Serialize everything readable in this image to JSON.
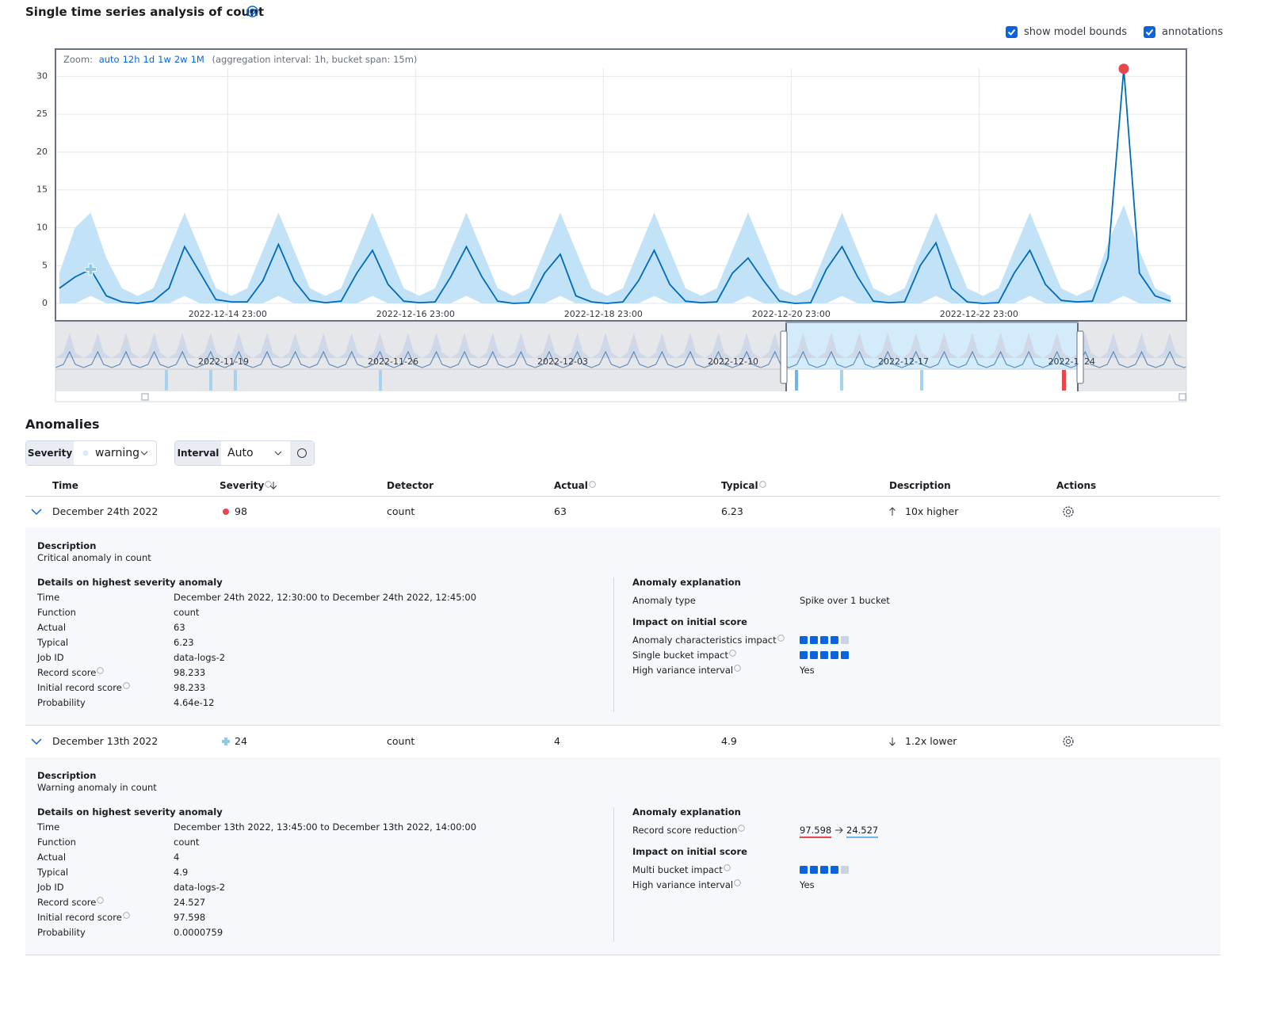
{
  "header": {
    "title": "Single time series analysis of count",
    "show_model_bounds": "show model bounds",
    "annotations": "annotations"
  },
  "zoom": {
    "label": "Zoom:",
    "options": [
      "auto",
      "12h",
      "1d",
      "1w",
      "2w",
      "1M"
    ],
    "interval": "(aggregation interval: 1h, bucket span: 15m)"
  },
  "chart_data": {
    "type": "line",
    "x": [
      "2022-12-13 04:00",
      "2022-12-13 08:00",
      "2022-12-13 12:00",
      "2022-12-13 16:00",
      "2022-12-13 20:00",
      "2022-12-14 00:00",
      "2022-12-14 04:00",
      "2022-12-14 08:00",
      "2022-12-14 12:00",
      "2022-12-14 16:00",
      "2022-12-14 20:00",
      "2022-12-15 00:00",
      "2022-12-15 04:00",
      "2022-12-15 08:00",
      "2022-12-15 12:00",
      "2022-12-15 16:00",
      "2022-12-15 20:00",
      "2022-12-16 00:00",
      "2022-12-16 04:00",
      "2022-12-16 08:00",
      "2022-12-16 12:00",
      "2022-12-16 16:00",
      "2022-12-16 20:00",
      "2022-12-17 00:00",
      "2022-12-17 04:00",
      "2022-12-17 08:00",
      "2022-12-17 12:00",
      "2022-12-17 16:00",
      "2022-12-17 20:00",
      "2022-12-18 00:00",
      "2022-12-18 04:00",
      "2022-12-18 08:00",
      "2022-12-18 12:00",
      "2022-12-18 16:00",
      "2022-12-18 20:00",
      "2022-12-19 00:00",
      "2022-12-19 04:00",
      "2022-12-19 08:00",
      "2022-12-19 12:00",
      "2022-12-19 16:00",
      "2022-12-19 20:00",
      "2022-12-20 00:00",
      "2022-12-20 04:00",
      "2022-12-20 08:00",
      "2022-12-20 12:00",
      "2022-12-20 16:00",
      "2022-12-20 20:00",
      "2022-12-21 00:00",
      "2022-12-21 04:00",
      "2022-12-21 08:00",
      "2022-12-21 12:00",
      "2022-12-21 16:00",
      "2022-12-21 20:00",
      "2022-12-22 00:00",
      "2022-12-22 04:00",
      "2022-12-22 08:00",
      "2022-12-22 12:00",
      "2022-12-22 16:00",
      "2022-12-22 20:00",
      "2022-12-23 00:00",
      "2022-12-23 04:00",
      "2022-12-23 08:00",
      "2022-12-23 12:00",
      "2022-12-23 16:00",
      "2022-12-23 20:00",
      "2022-12-24 00:00",
      "2022-12-24 04:00",
      "2022-12-24 08:00",
      "2022-12-24 12:00",
      "2022-12-24 16:00",
      "2022-12-24 20:00",
      "2022-12-25 00:00"
    ],
    "series": [
      {
        "color": "#006bb8",
        "values": [
          2,
          3.5,
          4.5,
          1,
          0.2,
          0,
          0.3,
          2,
          7.5,
          4,
          0.5,
          0.2,
          0.2,
          3,
          7.8,
          3,
          0.4,
          0.1,
          0.3,
          4,
          7,
          2.5,
          0.3,
          0.1,
          0.2,
          3.5,
          7.5,
          3.5,
          0.3,
          0,
          0.1,
          4,
          6.5,
          1,
          0.2,
          0,
          0.2,
          3,
          7,
          2.5,
          0.3,
          0.1,
          0.2,
          4,
          6,
          3,
          0.3,
          0,
          0.1,
          4.5,
          7.5,
          3.5,
          0.3,
          0.1,
          0.2,
          5,
          8,
          2,
          0.2,
          0,
          0.1,
          4,
          7,
          2.5,
          0.4,
          0.2,
          0.3,
          6,
          31,
          4,
          1,
          0.3
        ]
      }
    ],
    "bounds": {
      "color": "#c2e2f7",
      "upper": [
        4,
        10,
        12,
        6,
        2,
        1,
        2,
        7,
        12,
        7,
        2,
        1,
        2,
        7,
        12,
        7,
        2,
        1,
        2,
        7,
        12,
        7,
        2,
        1,
        2,
        7,
        12,
        7,
        2,
        1,
        2,
        7,
        12,
        7,
        2,
        1,
        2,
        7,
        12,
        7,
        2,
        1,
        2,
        7,
        12,
        7,
        2,
        1,
        2,
        7,
        12,
        7,
        2,
        1,
        2,
        7,
        12,
        7,
        2,
        1,
        2,
        7,
        12,
        7,
        2,
        1,
        2,
        8,
        13,
        7,
        2,
        1
      ],
      "lower": [
        0,
        0,
        1,
        0,
        0,
        0,
        0,
        0,
        1,
        0,
        0,
        0,
        0,
        0,
        1,
        0,
        0,
        0,
        0,
        0,
        1,
        0,
        0,
        0,
        0,
        0,
        1,
        0,
        0,
        0,
        0,
        0,
        1,
        0,
        0,
        0,
        0,
        0,
        1,
        0,
        0,
        0,
        0,
        0,
        1,
        0,
        0,
        0,
        0,
        0,
        1,
        0,
        0,
        0,
        0,
        0,
        1,
        0,
        0,
        0,
        0,
        0,
        1,
        0,
        0,
        0,
        0,
        0,
        1,
        0,
        0,
        0
      ]
    },
    "anomalies": [
      {
        "x": "2022-12-13 12:00",
        "value": 4.5,
        "color": "#8ecae6",
        "shape": "plus"
      },
      {
        "x": "2022-12-24 12:00",
        "value": 31,
        "color": "#e7464c",
        "shape": "dot"
      }
    ],
    "xlim": [
      "2022-12-13 03:00",
      "2022-12-25 04:00"
    ],
    "xticks": [
      "2022-12-14 23:00",
      "2022-12-16 23:00",
      "2022-12-18 23:00",
      "2022-12-20 23:00",
      "2022-12-22 23:00"
    ],
    "ylim": [
      -2.3,
      33.6
    ],
    "yticks": [
      0,
      5,
      10,
      15,
      20,
      25,
      30
    ],
    "grid": true
  },
  "overview": {
    "labels": [
      "2022-11-19",
      "2022-11-26",
      "2022-12-03",
      "2022-12-10",
      "2022-12-17",
      "2022-1",
      "24"
    ]
  },
  "anomalies": {
    "title": "Anomalies",
    "severity_label": "Severity",
    "severity_value": "warning",
    "interval_label": "Interval",
    "interval_value": "Auto",
    "columns": [
      {
        "label": "Time"
      },
      {
        "label": "Severity",
        "info": true
      },
      {
        "label": "Detector"
      },
      {
        "label": "Actual",
        "info": true
      },
      {
        "label": "Typical",
        "info": true
      },
      {
        "label": "Description"
      },
      {
        "label": "Actions"
      }
    ],
    "rows": [
      {
        "time": "December 24th 2022",
        "severity": 98,
        "severity_color": "#e7464c",
        "severity_shape": "dot",
        "detector": "count",
        "actual": 63,
        "typical": 6.23,
        "direction": "up",
        "description": "10x higher",
        "details": {
          "description_label": "Description",
          "description": "Critical anomaly in count",
          "details_title": "Details on highest severity anomaly",
          "fields": [
            {
              "label": "Time",
              "value": "December 24th 2022, 12:30:00 to December 24th 2022, 12:45:00"
            },
            {
              "label": "Function",
              "value": "count"
            },
            {
              "label": "Actual",
              "value": 63
            },
            {
              "label": "Typical",
              "value": 6.23
            },
            {
              "label": "Job ID",
              "value": "data-logs-2"
            },
            {
              "label": "Record score",
              "value": 98.233,
              "info": true
            },
            {
              "label": "Initial record score",
              "value": 98.233,
              "info": true
            },
            {
              "label": "Probability",
              "value": "4.64e-12"
            }
          ],
          "explanation_title": "Anomaly explanation",
          "explanation": [
            {
              "label": "Anomaly type",
              "value": "Spike over 1 bucket"
            }
          ],
          "impact_title": "Impact on initial score",
          "impact": [
            {
              "label": "Anomaly characteristics impact",
              "value": 4,
              "info": true
            },
            {
              "label": "Single bucket impact",
              "value": 5,
              "info": true
            },
            {
              "label": "High variance interval",
              "value": "Yes",
              "info": true
            }
          ]
        }
      },
      {
        "time": "December 13th 2022",
        "severity": 24,
        "severity_color": "#8ecae6",
        "severity_shape": "plus",
        "detector": "count",
        "actual": 4,
        "typical": 4.9,
        "direction": "down",
        "description": "1.2x lower",
        "details": {
          "description_label": "Description",
          "description": "Warning anomaly in count",
          "details_title": "Details on highest severity anomaly",
          "fields": [
            {
              "label": "Time",
              "value": "December 13th 2022, 13:45:00 to December 13th 2022, 14:00:00"
            },
            {
              "label": "Function",
              "value": "count"
            },
            {
              "label": "Actual",
              "value": 4
            },
            {
              "label": "Typical",
              "value": 4.9
            },
            {
              "label": "Job ID",
              "value": "data-logs-2"
            },
            {
              "label": "Record score",
              "value": 24.527,
              "info": true
            },
            {
              "label": "Initial record score",
              "value": 97.598,
              "info": true
            },
            {
              "label": "Probability",
              "value": "0.0000759"
            }
          ],
          "explanation_title": "Anomaly explanation",
          "explanation": [
            {
              "label": "Record score reduction",
              "from": 97.598,
              "to": 24.527,
              "info": true
            }
          ],
          "impact_title": "Impact on initial score",
          "impact": [
            {
              "label": "Multi bucket impact",
              "value": 4,
              "info": true
            },
            {
              "label": "High variance interval",
              "value": "Yes",
              "info": true
            }
          ]
        }
      }
    ]
  }
}
